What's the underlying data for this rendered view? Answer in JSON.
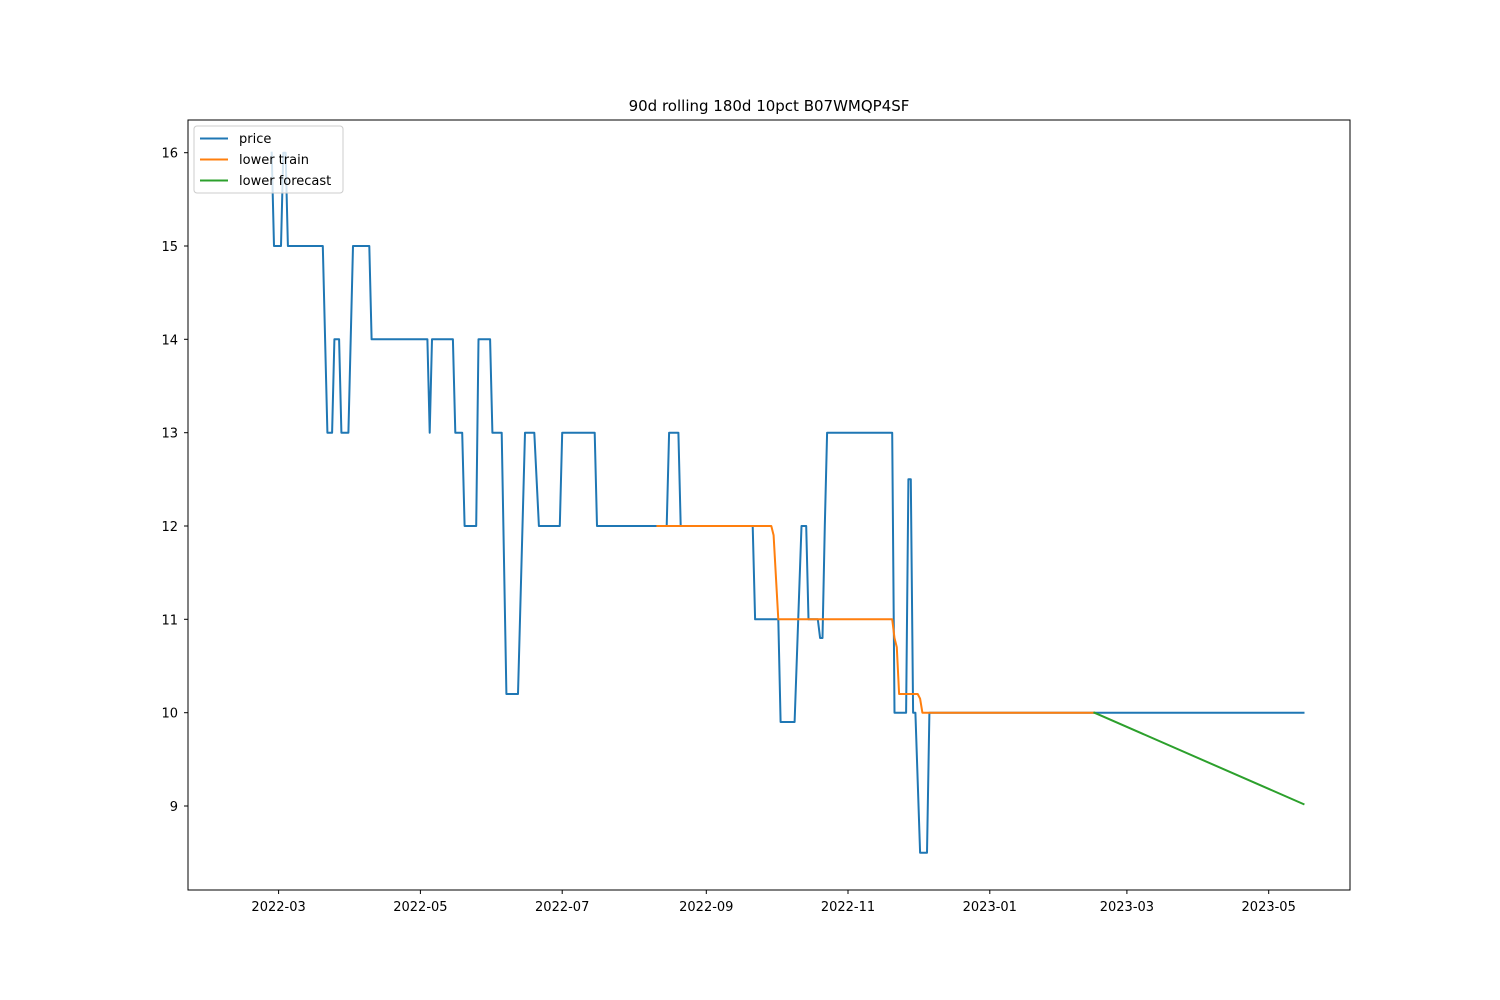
{
  "chart_data": {
    "type": "line",
    "title": "90d rolling 180d 10pct B07WMQP4SF",
    "xlabel": "",
    "ylabel": "",
    "x_type": "date",
    "xlim": [
      "2022-01-21",
      "2023-06-05"
    ],
    "ylim": [
      8.1,
      16.35
    ],
    "grid": false,
    "legend_position": "top-left",
    "x_ticks": [
      "2022-03-01",
      "2022-05-01",
      "2022-07-01",
      "2022-09-01",
      "2022-11-01",
      "2023-01-01",
      "2023-03-01",
      "2023-05-01"
    ],
    "x_tick_labels": [
      "2022-03",
      "2022-05",
      "2022-07",
      "2022-09",
      "2022-11",
      "2023-01",
      "2023-03",
      "2023-05"
    ],
    "y_ticks": [
      9,
      10,
      11,
      12,
      13,
      14,
      15,
      16
    ],
    "y_tick_labels": [
      "9",
      "10",
      "11",
      "12",
      "13",
      "14",
      "15",
      "16"
    ],
    "series": [
      {
        "name": "price",
        "color": "#1f77b4",
        "points": [
          [
            "2022-02-26",
            16
          ],
          [
            "2022-02-27",
            15
          ],
          [
            "2022-03-02",
            15
          ],
          [
            "2022-03-03",
            16
          ],
          [
            "2022-03-04",
            16
          ],
          [
            "2022-03-05",
            15
          ],
          [
            "2022-03-20",
            15
          ],
          [
            "2022-03-22",
            13
          ],
          [
            "2022-03-24",
            13
          ],
          [
            "2022-03-25",
            14
          ],
          [
            "2022-03-27",
            14
          ],
          [
            "2022-03-28",
            13
          ],
          [
            "2022-03-31",
            13
          ],
          [
            "2022-04-02",
            15
          ],
          [
            "2022-04-09",
            15
          ],
          [
            "2022-04-10",
            14
          ],
          [
            "2022-05-04",
            14
          ],
          [
            "2022-05-05",
            13
          ],
          [
            "2022-05-06",
            14
          ],
          [
            "2022-05-15",
            14
          ],
          [
            "2022-05-16",
            13
          ],
          [
            "2022-05-19",
            13
          ],
          [
            "2022-05-20",
            12
          ],
          [
            "2022-05-25",
            12
          ],
          [
            "2022-05-26",
            14
          ],
          [
            "2022-05-31",
            14
          ],
          [
            "2022-06-01",
            13
          ],
          [
            "2022-06-05",
            13
          ],
          [
            "2022-06-07",
            10.2
          ],
          [
            "2022-06-12",
            10.2
          ],
          [
            "2022-06-15",
            13
          ],
          [
            "2022-06-19",
            13
          ],
          [
            "2022-06-21",
            12
          ],
          [
            "2022-06-30",
            12
          ],
          [
            "2022-07-01",
            13
          ],
          [
            "2022-07-15",
            13
          ],
          [
            "2022-07-16",
            12
          ],
          [
            "2022-08-15",
            12
          ],
          [
            "2022-08-16",
            13
          ],
          [
            "2022-08-20",
            13
          ],
          [
            "2022-08-21",
            12
          ],
          [
            "2022-09-21",
            12
          ],
          [
            "2022-09-22",
            11
          ],
          [
            "2022-10-02",
            11
          ],
          [
            "2022-10-03",
            9.9
          ],
          [
            "2022-10-09",
            9.9
          ],
          [
            "2022-10-12",
            12
          ],
          [
            "2022-10-14",
            12
          ],
          [
            "2022-10-15",
            11
          ],
          [
            "2022-10-19",
            11
          ],
          [
            "2022-10-20",
            10.8
          ],
          [
            "2022-10-21",
            10.8
          ],
          [
            "2022-10-22",
            12
          ],
          [
            "2022-10-23",
            13
          ],
          [
            "2022-11-20",
            13
          ],
          [
            "2022-11-21",
            10
          ],
          [
            "2022-11-26",
            10
          ],
          [
            "2022-11-27",
            12.5
          ],
          [
            "2022-11-28",
            12.5
          ],
          [
            "2022-11-29",
            10
          ],
          [
            "2022-11-30",
            10
          ],
          [
            "2022-12-02",
            8.5
          ],
          [
            "2022-12-05",
            8.5
          ],
          [
            "2022-12-06",
            10
          ],
          [
            "2023-05-16",
            10
          ]
        ]
      },
      {
        "name": "lower train",
        "color": "#ff7f0e",
        "points": [
          [
            "2022-08-11",
            12
          ],
          [
            "2022-09-29",
            12
          ],
          [
            "2022-09-30",
            11.9
          ],
          [
            "2022-10-02",
            11
          ],
          [
            "2022-11-20",
            11
          ],
          [
            "2022-11-21",
            10.8
          ],
          [
            "2022-11-22",
            10.7
          ],
          [
            "2022-11-23",
            10.2
          ],
          [
            "2022-12-01",
            10.2
          ],
          [
            "2022-12-02",
            10.15
          ],
          [
            "2022-12-03",
            10
          ],
          [
            "2023-02-15",
            10
          ]
        ]
      },
      {
        "name": "lower forecast",
        "color": "#2ca02c",
        "points": [
          [
            "2023-02-15",
            10
          ],
          [
            "2023-05-16",
            9.02
          ]
        ]
      }
    ]
  }
}
